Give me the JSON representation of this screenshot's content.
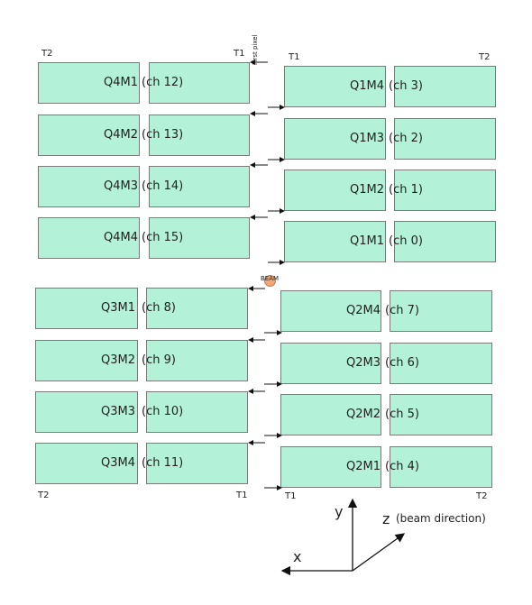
{
  "corners": {
    "top_left_t2": "T2",
    "top_left_t1": "T1",
    "top_right_t1": "T1",
    "top_right_t2": "T2",
    "bottom_left_t2": "T2",
    "bottom_left_t1": "T1",
    "bottom_right_t1": "T1",
    "bottom_right_t2": "T2"
  },
  "first_pixel": "First pixel",
  "beam": "BEAM",
  "modules": {
    "q4m1_name": "Q4M1",
    "q4m1_ch": "(ch 12)",
    "q4m2_name": "Q4M2",
    "q4m2_ch": "(ch 13)",
    "q4m3_name": "Q4M3",
    "q4m3_ch": "(ch 14)",
    "q4m4_name": "Q4M4",
    "q4m4_ch": "(ch 15)",
    "q1m4_name": "Q1M4",
    "q1m4_ch": "(ch 3)",
    "q1m3_name": "Q1M3",
    "q1m3_ch": "(ch 2)",
    "q1m2_name": "Q1M2",
    "q1m2_ch": "(ch 1)",
    "q1m1_name": "Q1M1",
    "q1m1_ch": "(ch 0)",
    "q3m1_name": "Q3M1",
    "q3m1_ch": "(ch 8)",
    "q3m2_name": "Q3M2",
    "q3m2_ch": "(ch 9)",
    "q3m3_name": "Q3M3",
    "q3m3_ch": "(ch 10)",
    "q3m4_name": "Q3M4",
    "q3m4_ch": "(ch 11)",
    "q2m4_name": "Q2M4",
    "q2m4_ch": "(ch 7)",
    "q2m3_name": "Q2M3",
    "q2m3_ch": "(ch 6)",
    "q2m2_name": "Q2M2",
    "q2m2_ch": "(ch 5)",
    "q2m1_name": "Q2M1",
    "q2m1_ch": "(ch 4)"
  },
  "axes": {
    "x": "x",
    "y": "y",
    "z": "z",
    "z_note": "(beam direction)"
  },
  "colors": {
    "module_fill": "#b3f2d9",
    "module_border": "#7a7a7a",
    "beam_dot": "#f0a878"
  }
}
